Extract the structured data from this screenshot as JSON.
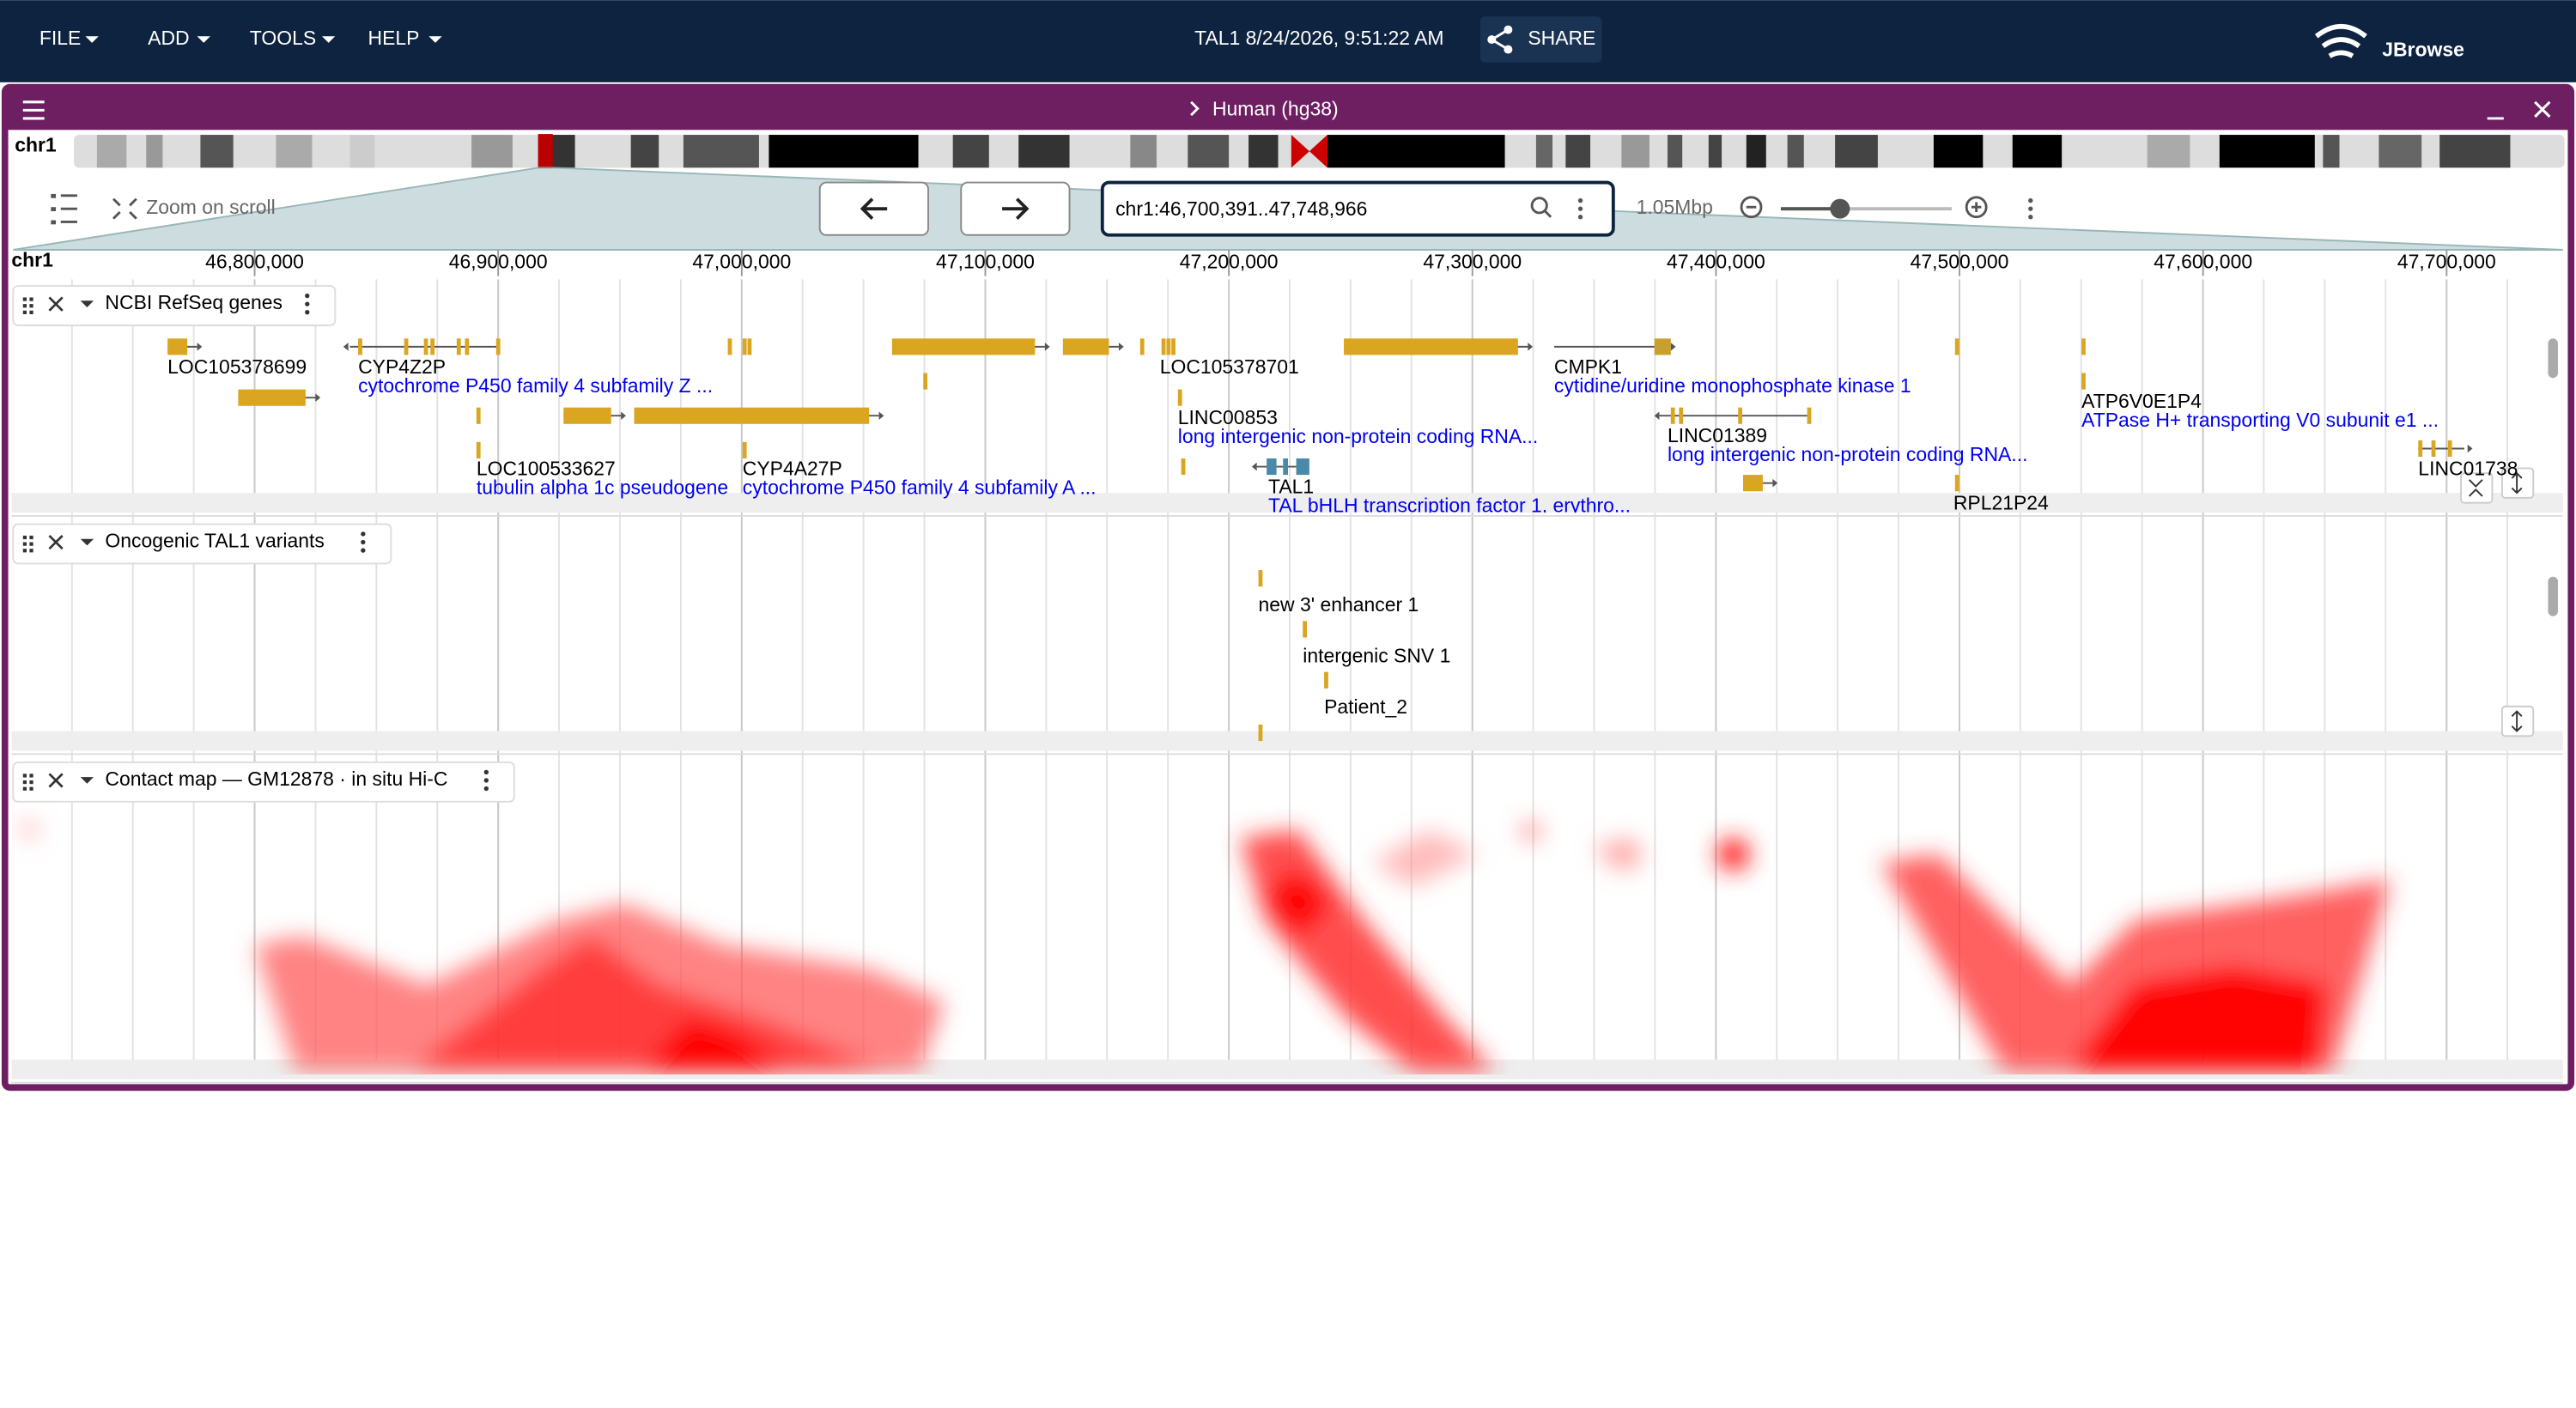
{
  "menu": [
    "FILE",
    "ADD",
    "TOOLS",
    "HELP"
  ],
  "session_title": "TAL1 8/24/2026, 9:51:22 AM",
  "share": "SHARE",
  "logo": "JBrowse",
  "view": {
    "title": "Human (hg38)",
    "chromosome": "chr1",
    "zoom_on_scroll": "Zoom on scroll",
    "location": "chr1:46,700,391..47,748,966",
    "span": "1.05Mbp",
    "ruler": {
      "ref": "chr1",
      "ticks": [
        "46,800,000",
        "46,900,000",
        "47,000,000",
        "47,100,000",
        "47,200,000",
        "47,300,000",
        "47,400,000",
        "47,500,000",
        "47,600,000",
        "47,700,000"
      ]
    }
  },
  "tracks": [
    {
      "name": "NCBI RefSeq genes",
      "features": [
        {
          "name": "LOC105378699"
        },
        {
          "name": "CYP4Z2P",
          "description": "cytochrome P450 family 4 subfamily Z ..."
        },
        {
          "name": "LOC105378701"
        },
        {
          "name": "LINC00853",
          "description": "long intergenic non-protein coding RNA..."
        },
        {
          "name": "CMPK1",
          "description": "cytidine/uridine monophosphate kinase 1"
        },
        {
          "name": "LINC01389",
          "description": "long intergenic non-protein coding RNA..."
        },
        {
          "name": "ATP6V0E1P4",
          "description": "ATPase H+ transporting V0 subunit e1 ..."
        },
        {
          "name": "LOC100533627",
          "description": "tubulin alpha 1c pseudogene"
        },
        {
          "name": "CYP4A27P",
          "description": "cytochrome P450 family 4 subfamily A ..."
        },
        {
          "name": "TAL1",
          "description": "TAL bHLH transcription factor 1, erythro..."
        },
        {
          "name": "RPL21P24"
        },
        {
          "name": "LINC01738"
        }
      ]
    },
    {
      "name": "Oncogenic TAL1 variants",
      "features": [
        {
          "name": "new 3' enhancer 1"
        },
        {
          "name": "intergenic SNV 1"
        },
        {
          "name": "Patient_2"
        }
      ]
    },
    {
      "name": "Contact map — GM12878 · in situ Hi-C"
    }
  ]
}
